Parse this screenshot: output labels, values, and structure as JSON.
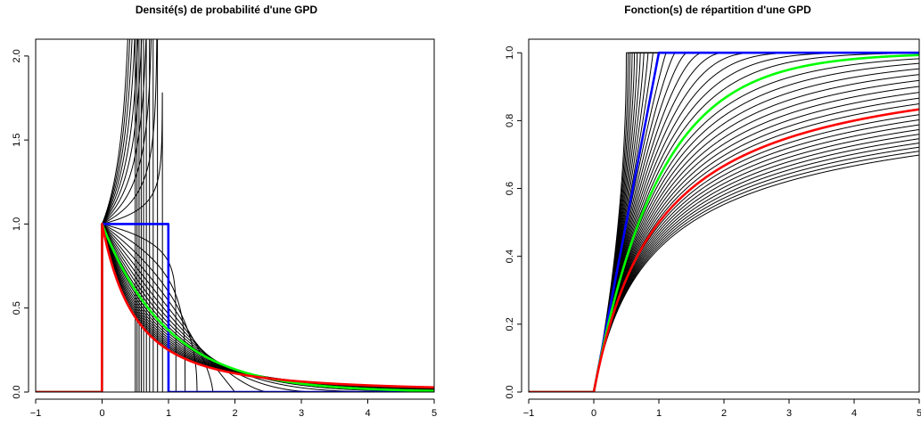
{
  "chart_data": [
    {
      "type": "line",
      "title": "Densité(s) de probabilité d'une GPD",
      "xlabel": "",
      "ylabel": "",
      "xlim": [
        -1,
        5
      ],
      "ylim": [
        0,
        2.1
      ],
      "x_ticks": [
        -1,
        0,
        1,
        2,
        3,
        4,
        5
      ],
      "x_tick_labels": [
        "−1",
        "0",
        "1",
        "2",
        "3",
        "4",
        "5"
      ],
      "y_ticks": [
        0,
        0.5,
        1,
        1.5,
        2
      ],
      "y_tick_labels": [
        "0.0",
        "0.5",
        "1.0",
        "1.5",
        "2.0"
      ],
      "grid": false,
      "legend": "none",
      "function": "density",
      "family": "Generalized Pareto, location 0, scale 1, shape xi",
      "shape_values_black": [
        -2,
        -1.9,
        -1.8,
        -1.7,
        -1.6,
        -1.5,
        -1.4,
        -1.3,
        -1.2,
        -1.1,
        -0.9,
        -0.8,
        -0.7,
        -0.6,
        -0.5,
        -0.4,
        -0.3,
        -0.2,
        -0.1,
        0.1,
        0.2,
        0.3,
        0.4,
        0.5,
        0.6,
        0.7,
        0.8,
        0.9
      ],
      "highlight_series": [
        {
          "shape": -1,
          "color": "#0000ff"
        },
        {
          "shape": 0,
          "color": "#00ff00"
        },
        {
          "shape": 1,
          "color": "#ff0000"
        }
      ],
      "series_colors": {
        "default": "#000000"
      }
    },
    {
      "type": "line",
      "title": "Fonction(s) de répartition d'une GPD",
      "xlabel": "",
      "ylabel": "",
      "xlim": [
        -1,
        5
      ],
      "ylim": [
        0,
        1.04
      ],
      "x_ticks": [
        -1,
        0,
        1,
        2,
        3,
        4,
        5
      ],
      "x_tick_labels": [
        "−1",
        "0",
        "1",
        "2",
        "3",
        "4",
        "5"
      ],
      "y_ticks": [
        0,
        0.2,
        0.4,
        0.6,
        0.8,
        1
      ],
      "y_tick_labels": [
        "0.0",
        "0.2",
        "0.4",
        "0.6",
        "0.8",
        "1.0"
      ],
      "grid": false,
      "legend": "none",
      "function": "cdf",
      "family": "Generalized Pareto, location 0, scale 1, shape xi",
      "shape_values_black": [
        -2,
        -1.9,
        -1.8,
        -1.7,
        -1.6,
        -1.5,
        -1.4,
        -1.3,
        -1.2,
        -1.1,
        -0.9,
        -0.8,
        -0.7,
        -0.6,
        -0.5,
        -0.4,
        -0.3,
        -0.2,
        -0.1,
        0.1,
        0.2,
        0.3,
        0.4,
        0.5,
        0.6,
        0.7,
        0.8,
        0.9,
        1.1,
        1.2,
        1.3,
        1.4,
        1.5,
        1.6,
        1.7,
        1.8,
        1.9,
        2
      ],
      "highlight_series": [
        {
          "shape": -1,
          "color": "#0000ff"
        },
        {
          "shape": 0,
          "color": "#00ff00"
        },
        {
          "shape": 1,
          "color": "#ff0000"
        }
      ],
      "series_colors": {
        "default": "#000000"
      }
    }
  ]
}
